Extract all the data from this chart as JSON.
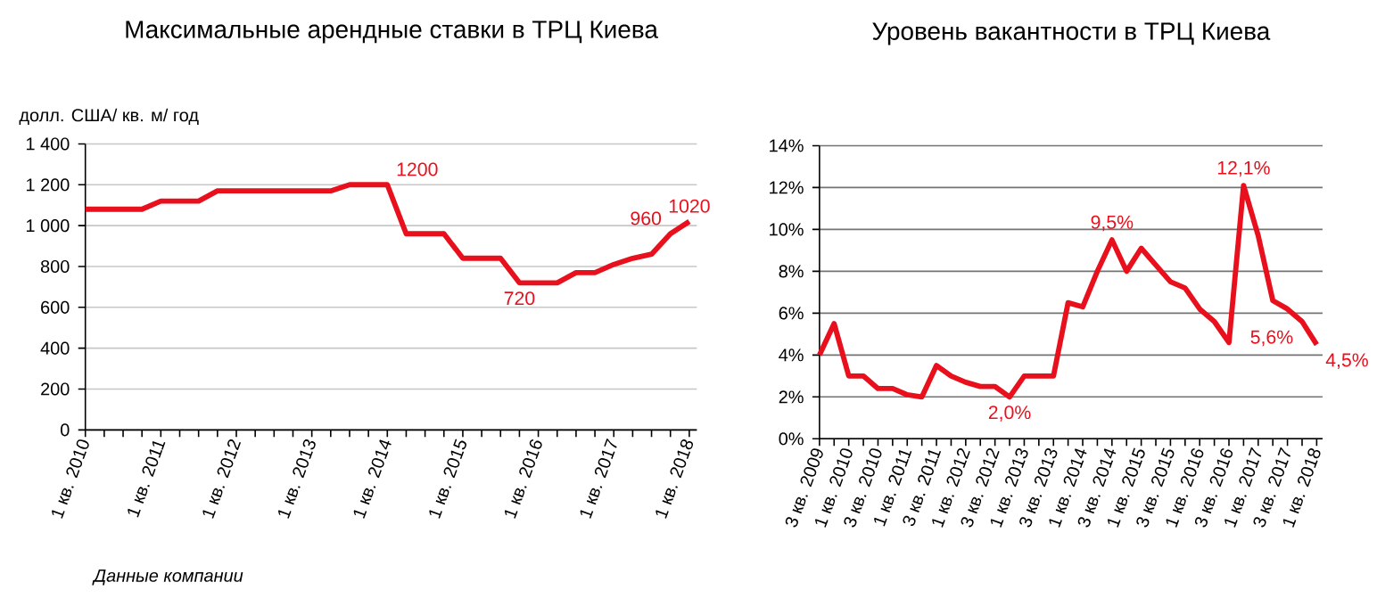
{
  "chart_data": [
    {
      "type": "line",
      "title": "Максимальные арендные ставки в ТРЦ Киева",
      "ylabel": "долл. США/ кв. м/ год",
      "categories": [
        "1 кв. 2010",
        null,
        null,
        null,
        "1 кв. 2011",
        null,
        null,
        null,
        "1 кв. 2012",
        null,
        null,
        null,
        "1 кв. 2013",
        null,
        null,
        null,
        "1 кв. 2014",
        null,
        null,
        null,
        "1 кв. 2015",
        null,
        null,
        null,
        "1 кв. 2016",
        null,
        null,
        null,
        "1 кв. 2017",
        null,
        null,
        null,
        "1 кв. 2018"
      ],
      "series": [
        {
          "color": "#e8101c",
          "values": [
            1080,
            1080,
            1080,
            1080,
            1120,
            1120,
            1120,
            1170,
            1170,
            1170,
            1170,
            1170,
            1170,
            1170,
            1200,
            1200,
            1200,
            960,
            960,
            960,
            840,
            840,
            840,
            720,
            720,
            720,
            770,
            770,
            810,
            840,
            860,
            960,
            1020
          ],
          "value_labels": [
            null,
            null,
            null,
            null,
            null,
            null,
            null,
            null,
            null,
            null,
            null,
            null,
            null,
            null,
            null,
            null,
            "1200",
            null,
            null,
            null,
            null,
            null,
            null,
            "720",
            null,
            null,
            null,
            null,
            null,
            null,
            null,
            "960",
            "1020"
          ]
        }
      ],
      "ylim": [
        0,
        1400
      ],
      "yticks": [
        0,
        200,
        400,
        600,
        800,
        {
          "value": 1000,
          "label": "1 000"
        },
        {
          "value": 1200,
          "label": "1 200"
        },
        {
          "value": 1400,
          "label": "1 400"
        }
      ],
      "grid": "y",
      "annotations": [
        "Данные компании"
      ]
    },
    {
      "type": "line",
      "title": "Уровень вакантности в ТРЦ Киева",
      "categories": [
        "3 кв. 2009",
        null,
        "1 кв. 2010",
        null,
        "3 кв. 2010",
        null,
        "1 кв. 2011",
        null,
        "3 кв. 2011",
        null,
        "1 кв. 2012",
        null,
        "3 кв. 2012",
        null,
        "1 кв. 2013",
        null,
        "3 кв. 2013",
        null,
        "1 кв. 2014",
        null,
        "3 кв. 2014",
        null,
        "1 кв. 2015",
        null,
        "3 кв. 2015",
        null,
        "1 кв. 2016",
        null,
        "3 кв. 2016",
        null,
        "1 кв. 2017",
        null,
        "3 кв. 2017",
        null,
        "1 кв. 2018"
      ],
      "series": [
        {
          "color": "#e8101c",
          "values": [
            4.0,
            5.5,
            3.0,
            3.0,
            2.4,
            2.4,
            2.1,
            2.0,
            3.5,
            3.0,
            2.7,
            2.5,
            2.5,
            2.0,
            3.0,
            3.0,
            3.0,
            6.5,
            6.3,
            8.0,
            9.5,
            8.0,
            9.1,
            8.3,
            7.5,
            7.2,
            6.2,
            5.6,
            4.6,
            12.1,
            9.7,
            6.6,
            6.2,
            5.6,
            4.5
          ],
          "value_labels": [
            null,
            null,
            null,
            null,
            null,
            null,
            null,
            null,
            null,
            null,
            null,
            null,
            null,
            "2,0%",
            null,
            null,
            null,
            null,
            null,
            null,
            "9,5%",
            null,
            null,
            null,
            null,
            null,
            null,
            null,
            null,
            "12,1%",
            null,
            null,
            null,
            "5,6%",
            "4,5%"
          ]
        }
      ],
      "ylim": [
        0,
        14
      ],
      "yticks": [
        {
          "value": 0,
          "label": "0%"
        },
        {
          "value": 2,
          "label": "2%"
        },
        {
          "value": 4,
          "label": "4%"
        },
        {
          "value": 6,
          "label": "6%"
        },
        {
          "value": 8,
          "label": "8%"
        },
        {
          "value": 10,
          "label": "10%"
        },
        {
          "value": 12,
          "label": "12%"
        },
        {
          "value": 14,
          "label": "14%"
        }
      ],
      "grid": "y"
    }
  ]
}
